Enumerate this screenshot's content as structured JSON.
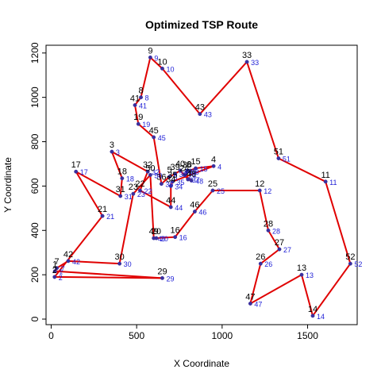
{
  "chart_data": {
    "type": "scatter",
    "title": "Optimized TSP Route",
    "xlabel": "X Coordinate",
    "ylabel": "Y Coordinate",
    "xlim": [
      -30,
      1790
    ],
    "ylim": [
      -25,
      1235
    ],
    "xticks": [
      0,
      500,
      1000,
      1500
    ],
    "yticks": [
      0,
      200,
      400,
      600,
      800,
      1000,
      1200
    ],
    "route_color": "#e00000",
    "point_color": "#3a2f9e",
    "label_color_outer": "#000000",
    "label_color_inner": "#1f1fd6",
    "points": [
      {
        "id": 1,
        "x": 22,
        "y": 216
      },
      {
        "id": 2,
        "x": 20,
        "y": 190
      },
      {
        "id": 3,
        "x": 355,
        "y": 755
      },
      {
        "id": 4,
        "x": 950,
        "y": 690
      },
      {
        "id": 5,
        "x": 692,
        "y": 642
      },
      {
        "id": 6,
        "x": 806,
        "y": 667
      },
      {
        "id": 7,
        "x": 33,
        "y": 230
      },
      {
        "id": 8,
        "x": 525,
        "y": 1000
      },
      {
        "id": 9,
        "x": 580,
        "y": 1180
      },
      {
        "id": 10,
        "x": 650,
        "y": 1130
      },
      {
        "id": 11,
        "x": 1605,
        "y": 620
      },
      {
        "id": 12,
        "x": 1220,
        "y": 580
      },
      {
        "id": 13,
        "x": 1465,
        "y": 200
      },
      {
        "id": 14,
        "x": 1530,
        "y": 15
      },
      {
        "id": 15,
        "x": 845,
        "y": 680
      },
      {
        "id": 16,
        "x": 725,
        "y": 370
      },
      {
        "id": 17,
        "x": 145,
        "y": 665
      },
      {
        "id": 18,
        "x": 415,
        "y": 635
      },
      {
        "id": 19,
        "x": 510,
        "y": 880
      },
      {
        "id": 20,
        "x": 615,
        "y": 365
      },
      {
        "id": 21,
        "x": 300,
        "y": 465
      },
      {
        "id": 22,
        "x": 520,
        "y": 580
      },
      {
        "id": 23,
        "x": 480,
        "y": 565
      },
      {
        "id": 24,
        "x": 780,
        "y": 650
      },
      {
        "id": 25,
        "x": 945,
        "y": 580
      },
      {
        "id": 26,
        "x": 1225,
        "y": 250
      },
      {
        "id": 27,
        "x": 1335,
        "y": 315
      },
      {
        "id": 28,
        "x": 1270,
        "y": 400
      },
      {
        "id": 29,
        "x": 650,
        "y": 185
      },
      {
        "id": 30,
        "x": 400,
        "y": 250
      },
      {
        "id": 31,
        "x": 405,
        "y": 555
      },
      {
        "id": 32,
        "x": 565,
        "y": 665
      },
      {
        "id": 33,
        "x": 1145,
        "y": 1160
      },
      {
        "id": 34,
        "x": 700,
        "y": 600
      },
      {
        "id": 35,
        "x": 710,
        "y": 620
      },
      {
        "id": 36,
        "x": 645,
        "y": 610
      },
      {
        "id": 37,
        "x": 800,
        "y": 630
      },
      {
        "id": 38,
        "x": 795,
        "y": 665
      },
      {
        "id": 39,
        "x": 725,
        "y": 655
      },
      {
        "id": 40,
        "x": 755,
        "y": 670
      },
      {
        "id": 41,
        "x": 490,
        "y": 965
      },
      {
        "id": 42,
        "x": 100,
        "y": 262
      },
      {
        "id": 43,
        "x": 870,
        "y": 925
      },
      {
        "id": 44,
        "x": 700,
        "y": 505
      },
      {
        "id": 45,
        "x": 600,
        "y": 820
      },
      {
        "id": 46,
        "x": 840,
        "y": 485
      },
      {
        "id": 47,
        "x": 1165,
        "y": 70
      },
      {
        "id": 48,
        "x": 820,
        "y": 625
      },
      {
        "id": 49,
        "x": 600,
        "y": 365
      },
      {
        "id": 50,
        "x": 580,
        "y": 650
      },
      {
        "id": 51,
        "x": 1330,
        "y": 725
      },
      {
        "id": 52,
        "x": 1750,
        "y": 250
      }
    ],
    "route": [
      1,
      7,
      42,
      30,
      23,
      50,
      49,
      20,
      16,
      46,
      25,
      12,
      28,
      27,
      26,
      47,
      13,
      14,
      52,
      11,
      51,
      33,
      43,
      10,
      9,
      8,
      41,
      19,
      45,
      36,
      5,
      39,
      40,
      37,
      48,
      24,
      6,
      38,
      15,
      4,
      35,
      34,
      44,
      22,
      32,
      3,
      18,
      31,
      17,
      21,
      2,
      29
    ]
  }
}
